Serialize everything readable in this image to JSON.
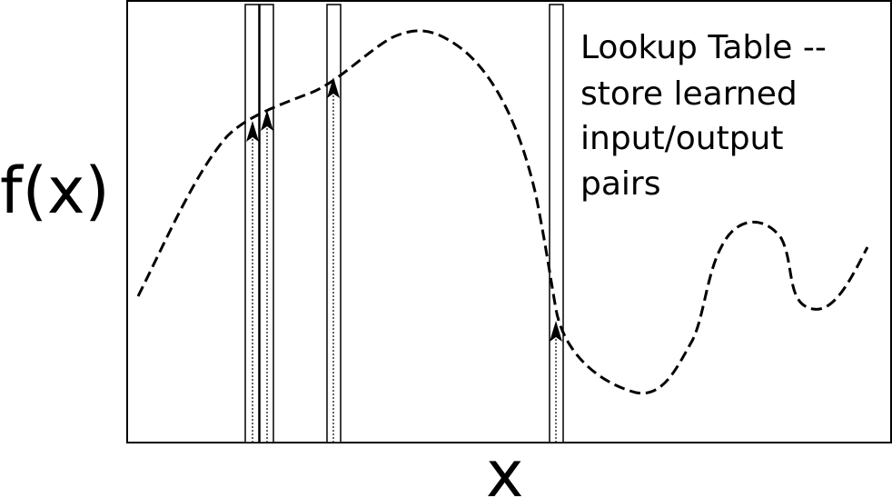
{
  "labels": {
    "y_axis": "f(x)",
    "x_axis": "x"
  },
  "note": {
    "lines": [
      "Lookup Table --",
      "store learned",
      "input/output",
      "pairs"
    ]
  }
}
